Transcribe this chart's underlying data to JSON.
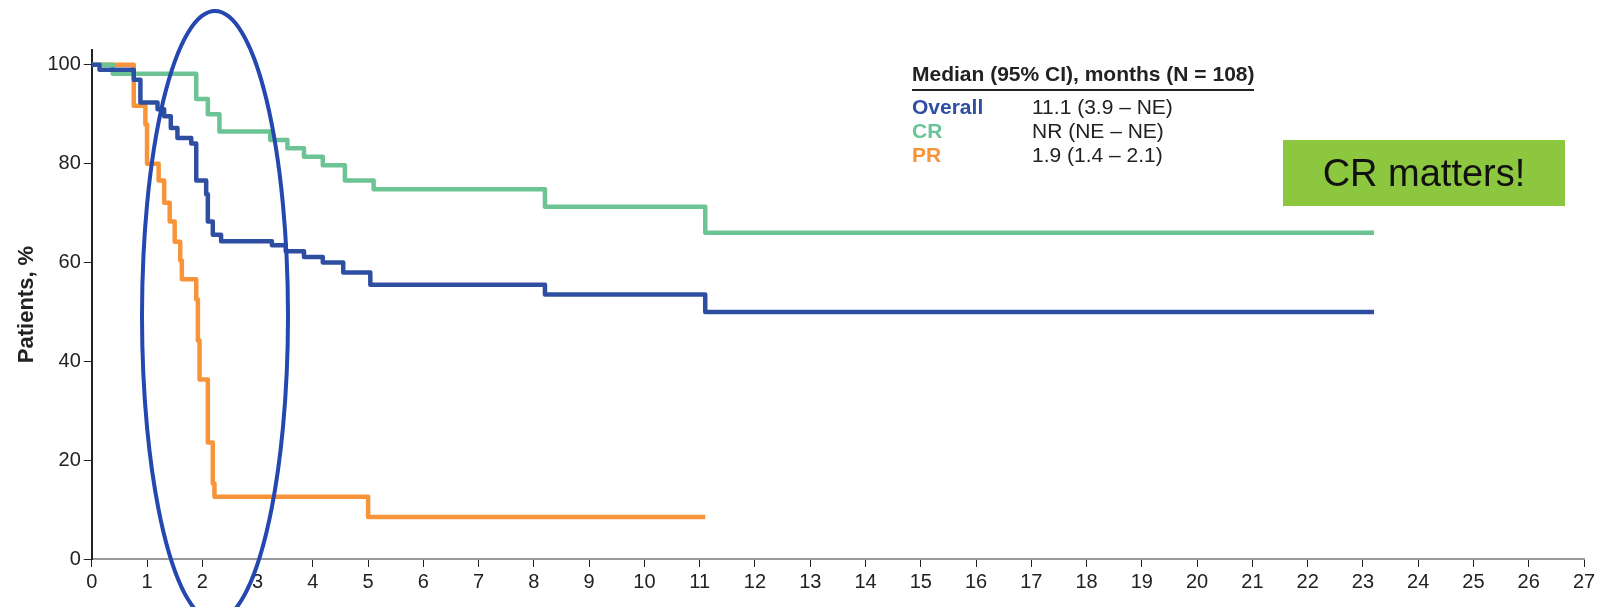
{
  "chart_data": {
    "type": "step",
    "ylabel": "Patients, %",
    "legend_title": "Median (95% CI), months (N = 108)",
    "legend": "top right",
    "marker": "none",
    "grid": false,
    "xlim": [
      0,
      27
    ],
    "xticks": [
      0,
      1,
      2,
      3,
      4,
      5,
      6,
      7,
      8,
      9,
      10,
      11,
      12,
      13,
      14,
      15,
      16,
      17,
      18,
      19,
      20,
      21,
      22,
      23,
      24,
      25,
      26,
      27
    ],
    "ylim": [
      0,
      103
    ],
    "yticks": [
      0,
      20,
      40,
      60,
      80,
      100
    ],
    "annotations": [
      "11.1 (3.9 – NE)",
      "NR (NE – NE)",
      "1.9 (1.4 – 2.1)",
      "CR matters!"
    ],
    "series": [
      {
        "name": "Overall",
        "color": "#2e4fa1",
        "x": [
          0,
          0.14,
          0.76,
          0.88,
          1.19,
          1.31,
          1.43,
          1.55,
          1.8,
          1.89,
          2.07,
          2.1,
          2.19,
          2.34,
          3.26,
          3.51,
          3.84,
          4.18,
          4.55,
          5.04,
          8.2,
          11.1,
          23.2
        ],
        "values": [
          100,
          99,
          97,
          92.4,
          91,
          89.6,
          87.2,
          85.2,
          84.1,
          76.6,
          73.8,
          68.3,
          65.6,
          64.3,
          63.5,
          62.3,
          61.1,
          60,
          58,
          55.5,
          53.5,
          50,
          50
        ]
      },
      {
        "name": "CR",
        "color": "#6cc495",
        "x": [
          0,
          0.38,
          1.89,
          2.1,
          2.31,
          3.23,
          3.54,
          3.84,
          4.18,
          4.58,
          5.1,
          8.2,
          11.1,
          23.2
        ],
        "values": [
          100,
          98.2,
          93.1,
          90,
          86.5,
          84.8,
          83.1,
          81.4,
          79.7,
          76.6,
          74.8,
          71.3,
          66,
          66
        ]
      },
      {
        "name": "PR",
        "color": "#f7943a",
        "x": [
          0,
          0.76,
          0.97,
          1,
          1.21,
          1.31,
          1.41,
          1.5,
          1.6,
          1.63,
          1.89,
          1.92,
          1.95,
          2.1,
          2.19,
          2.22,
          5,
          11.1
        ],
        "values": [
          100,
          91.7,
          87.9,
          80,
          76.6,
          72.1,
          68.3,
          64.2,
          60.4,
          56.6,
          52.5,
          44.2,
          36.3,
          23.6,
          15.3,
          12.6,
          8.5,
          8.5
        ]
      }
    ]
  }
}
